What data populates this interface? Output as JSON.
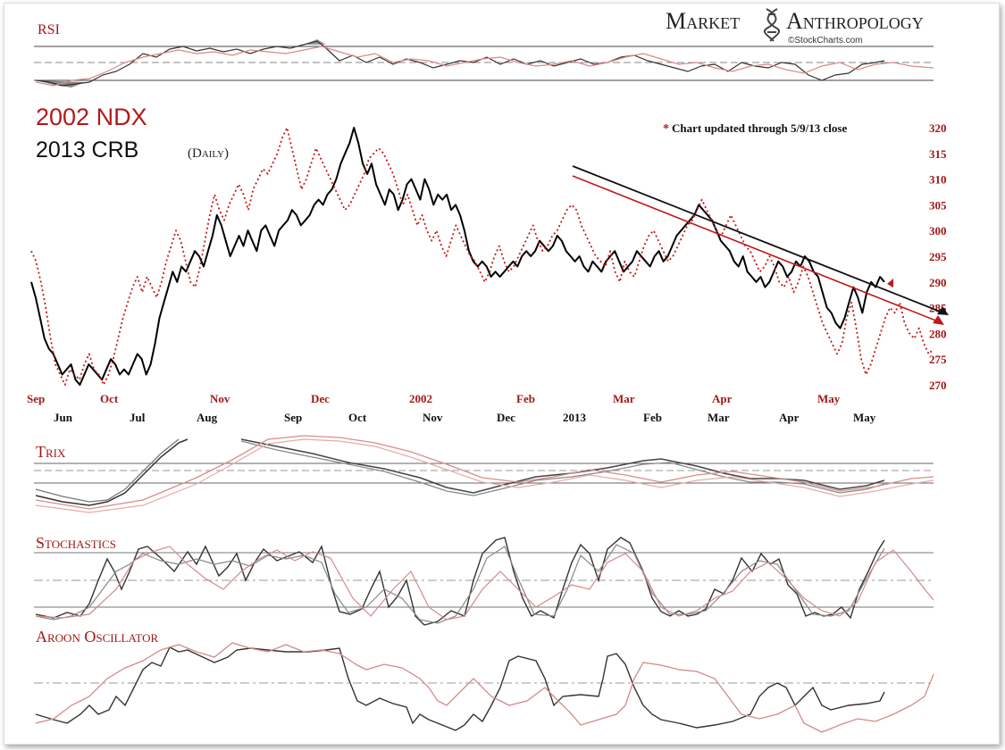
{
  "brand": {
    "left": "Market",
    "right": "Anthropology",
    "source": "©StockCharts.com"
  },
  "titles": {
    "ndx": "2002 NDX",
    "crb": "2013 CRB",
    "crb_sub": "(Daily)"
  },
  "note": {
    "star": "*",
    "text": "Chart updated through 5/9/13 close"
  },
  "panels": {
    "rsi": "RSI",
    "trix": "Trix",
    "stoch": "Stochastics",
    "aroon": "Aroon Oscillator"
  },
  "colors": {
    "crb": "#000000",
    "ndx": "#c0191b",
    "red_label": "#a01818"
  },
  "chart_data": [
    {
      "type": "line",
      "panel": "main",
      "yticks": [
        320,
        315,
        310,
        305,
        300,
        295,
        290,
        285,
        280,
        275,
        270
      ],
      "ylim": [
        268,
        322
      ],
      "axis": "right",
      "months_2002": [
        "Sep",
        "Oct",
        "Nov",
        "Dec",
        "2002",
        "Feb",
        "Mar",
        "Apr",
        "May"
      ],
      "months_2013": [
        "Jun",
        "Jul",
        "Aug",
        "Sep",
        "Oct",
        "Nov",
        "Dec",
        "2013",
        "Feb",
        "Mar",
        "Apr",
        "May"
      ],
      "series": [
        {
          "name": "2013 CRB",
          "values": [
            290,
            287,
            283,
            279,
            277,
            276,
            274,
            272,
            273,
            274,
            271,
            270,
            272,
            274,
            273,
            272,
            271,
            273,
            275,
            274,
            272,
            273,
            272,
            274,
            276,
            275,
            272,
            274,
            278,
            283,
            286,
            289,
            292,
            290,
            293,
            292,
            294,
            296,
            295,
            293,
            296,
            299,
            303,
            301,
            298,
            295,
            297,
            299,
            297,
            300,
            298,
            296,
            300,
            301,
            299,
            297,
            300,
            301,
            302,
            304,
            303,
            301,
            302,
            303,
            305,
            306,
            305,
            307,
            308,
            310,
            313,
            315,
            317,
            320,
            317,
            313,
            311,
            313,
            309,
            307,
            305,
            308,
            307,
            304,
            306,
            309,
            310,
            308,
            306,
            310,
            308,
            305,
            307,
            306,
            307,
            304,
            305,
            303,
            300,
            296,
            294,
            293,
            294,
            293,
            291,
            292,
            291,
            292,
            293,
            294,
            293,
            295,
            296,
            295,
            296,
            298,
            297,
            296,
            297,
            299,
            298,
            296,
            295,
            294,
            295,
            293,
            292,
            294,
            293,
            292,
            294,
            295,
            296,
            294,
            292,
            293,
            294,
            296,
            295,
            294,
            293,
            295,
            296,
            294,
            295,
            297,
            299,
            300,
            301,
            302,
            303,
            305,
            304,
            303,
            302,
            300,
            298,
            297,
            296,
            294,
            293,
            295,
            292,
            291,
            290,
            291,
            289,
            290,
            292,
            294,
            293,
            291,
            292,
            294,
            293,
            295,
            294,
            292,
            291,
            288,
            285,
            284,
            282,
            281,
            283,
            286,
            289,
            287,
            284,
            288,
            290,
            289,
            291,
            290
          ]
        },
        {
          "name": "2002 NDX",
          "values": [
            296,
            294,
            290,
            285,
            279,
            274,
            272,
            270,
            273,
            272,
            271,
            274,
            276,
            273,
            272,
            270,
            272,
            275,
            279,
            283,
            286,
            289,
            291,
            288,
            291,
            289,
            287,
            290,
            294,
            297,
            300,
            298,
            294,
            290,
            289,
            293,
            298,
            303,
            307,
            304,
            302,
            305,
            307,
            309,
            307,
            304,
            308,
            310,
            312,
            311,
            313,
            315,
            318,
            320,
            316,
            312,
            308,
            310,
            313,
            316,
            314,
            312,
            310,
            308,
            306,
            304,
            305,
            307,
            309,
            311,
            314,
            315,
            316,
            315,
            313,
            311,
            308,
            305,
            307,
            304,
            301,
            303,
            300,
            298,
            300,
            297,
            295,
            298,
            301,
            299,
            297,
            295,
            294,
            292,
            290,
            292,
            295,
            297,
            294,
            292,
            293,
            295,
            297,
            299,
            301,
            298,
            296,
            297,
            299,
            300,
            302,
            304,
            305,
            304,
            301,
            299,
            297,
            295,
            294,
            293,
            296,
            292,
            290,
            294,
            292,
            291,
            294,
            297,
            299,
            300,
            298,
            296,
            294,
            295,
            297,
            299,
            301,
            302,
            304,
            306,
            304,
            302,
            300,
            299,
            301,
            303,
            301,
            299,
            297,
            296,
            294,
            292,
            293,
            295,
            293,
            290,
            289,
            291,
            288,
            290,
            293,
            291,
            288,
            285,
            282,
            280,
            278,
            276,
            278,
            283,
            286,
            281,
            275,
            272,
            274,
            277,
            280,
            283,
            285,
            284,
            286,
            282,
            280,
            279,
            281,
            278,
            276,
            277
          ]
        }
      ]
    },
    {
      "type": "line",
      "panel": "RSI",
      "series_count": 2
    },
    {
      "type": "line",
      "panel": "Trix",
      "series_count": 3
    },
    {
      "type": "line",
      "panel": "Stochastics",
      "series_count": 3
    },
    {
      "type": "line",
      "panel": "Aroon Oscillator",
      "series_count": 2
    }
  ]
}
